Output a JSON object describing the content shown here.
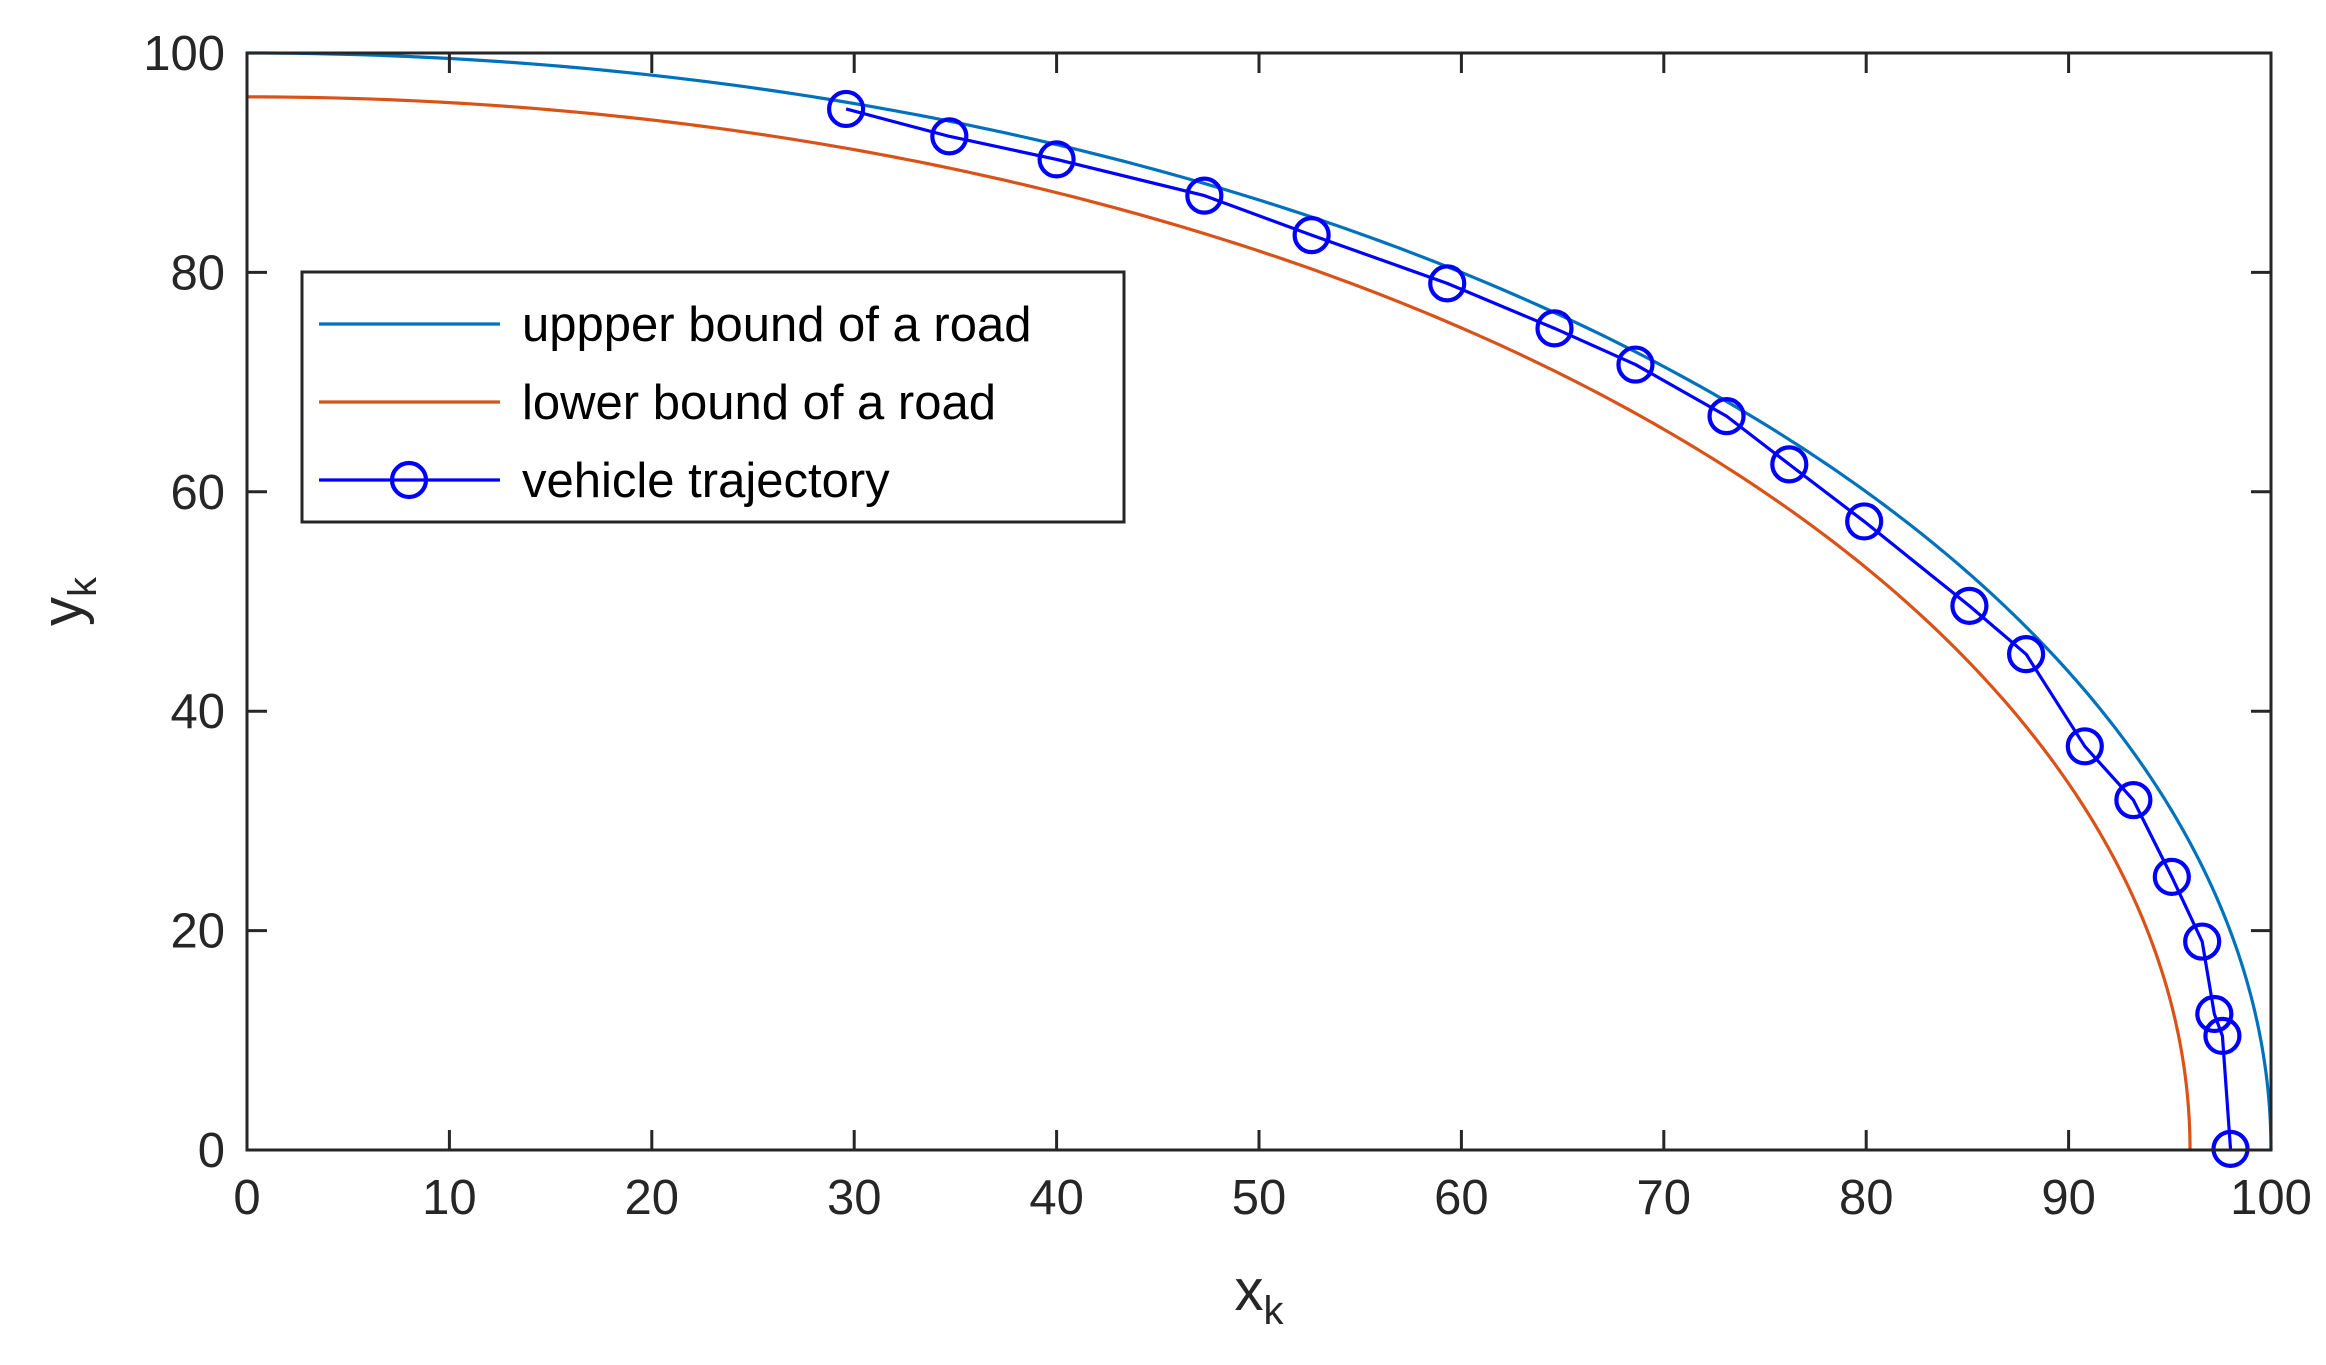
{
  "chart_data": {
    "type": "line",
    "title": "",
    "xlabel": "x",
    "xlabel_sub": "k",
    "ylabel": "y",
    "ylabel_sub": "k",
    "xlim": [
      0,
      100
    ],
    "ylim": [
      0,
      100
    ],
    "xticks": [
      0,
      10,
      20,
      30,
      40,
      50,
      60,
      70,
      80,
      90,
      100
    ],
    "yticks": [
      0,
      20,
      40,
      60,
      80,
      100
    ],
    "xtick_labels": [
      "0",
      "10",
      "20",
      "30",
      "40",
      "50",
      "60",
      "70",
      "80",
      "90",
      "100"
    ],
    "ytick_labels": [
      "0",
      "20",
      "40",
      "60",
      "80",
      "100"
    ],
    "grid": false,
    "legend_position": "upper-left",
    "series": [
      {
        "name": "uppper bound of a road",
        "color": "#0072BD",
        "shape": "quarter-circle",
        "radius": 100,
        "marker": "none"
      },
      {
        "name": "lower bound of a road",
        "color": "#D95319",
        "shape": "quarter-circle",
        "radius": 96,
        "marker": "none"
      },
      {
        "name": "vehicle trajectory",
        "color": "#0000FF",
        "marker": "circle",
        "x": [
          29.6,
          34.7,
          40.0,
          47.3,
          52.6,
          59.3,
          64.6,
          68.6,
          73.1,
          76.2,
          79.9,
          85.1,
          87.9,
          90.8,
          93.2,
          95.1,
          96.6,
          97.2,
          97.6,
          98.0
        ],
        "y": [
          94.9,
          92.4,
          90.3,
          87.0,
          83.4,
          79.0,
          74.9,
          71.6,
          66.9,
          62.5,
          57.3,
          49.6,
          45.2,
          36.8,
          31.9,
          24.9,
          19.0,
          12.4,
          10.4,
          0.1
        ]
      }
    ]
  }
}
